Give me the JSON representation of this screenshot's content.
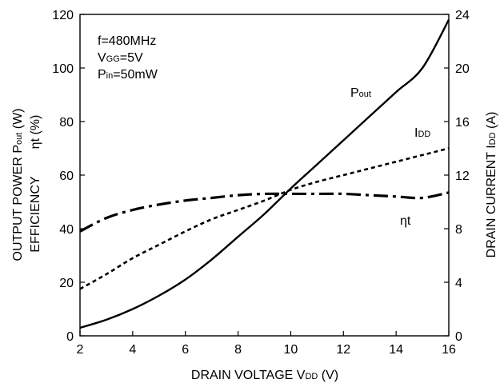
{
  "chart_data": {
    "type": "line",
    "x": [
      2,
      3,
      4,
      5,
      6,
      7,
      8,
      9,
      10,
      11,
      12,
      13,
      14,
      15,
      16
    ],
    "xlim": [
      2,
      16
    ],
    "ylim_left": [
      0,
      120
    ],
    "ylim_right": [
      0,
      24
    ],
    "x_ticks": [
      "2",
      "4",
      "6",
      "8",
      "10",
      "12",
      "14",
      "16"
    ],
    "y_ticks_left": [
      "0",
      "20",
      "40",
      "60",
      "80",
      "100",
      "120"
    ],
    "y_ticks_right": [
      "0",
      "4",
      "8",
      "12",
      "16",
      "20",
      "24"
    ],
    "xlabel": {
      "main": "DRAIN VOLTAGE V",
      "sub": "DD",
      "unit": " (V)"
    },
    "ylabel_left_line1": {
      "main": "OUTPUT POWER P",
      "sub": "out",
      "unit": " (W)"
    },
    "ylabel_left_line2": {
      "main": "EFFICIENCY",
      "eta": "ηt (%)"
    },
    "ylabel_right": {
      "main": "DRAIN CURRENT  I",
      "sub": "DD",
      "unit": " (A)"
    },
    "conditions": [
      {
        "main": "f=480MHz",
        "sub": "",
        "rest": ""
      },
      {
        "main": "V",
        "sub": "GG",
        "rest": "=5V"
      },
      {
        "main": "P",
        "sub": "in",
        "rest": "=50mW"
      }
    ],
    "series": [
      {
        "name": "Pout",
        "label_main": "P",
        "label_sub": "out",
        "axis": "left",
        "style": "solid",
        "values": [
          3,
          6,
          10,
          15,
          21,
          28.5,
          37,
          45.5,
          55,
          64,
          73,
          82,
          91,
          100,
          118
        ]
      },
      {
        "name": "IDD",
        "label_main": "I",
        "label_sub": "DD",
        "axis": "right",
        "style": "dashed",
        "values": [
          3.5,
          4.6,
          5.8,
          6.8,
          7.8,
          8.7,
          9.4,
          10.1,
          10.9,
          11.5,
          12.0,
          12.5,
          13.0,
          13.5,
          14.0
        ]
      },
      {
        "name": "ηt",
        "label_main": "ηt",
        "label_sub": "",
        "axis": "left",
        "style": "dashdot",
        "values": [
          39,
          44,
          47,
          49,
          50.5,
          51.5,
          52.5,
          53,
          53,
          53,
          53,
          52.5,
          52,
          51.5,
          53.5
        ]
      }
    ]
  }
}
